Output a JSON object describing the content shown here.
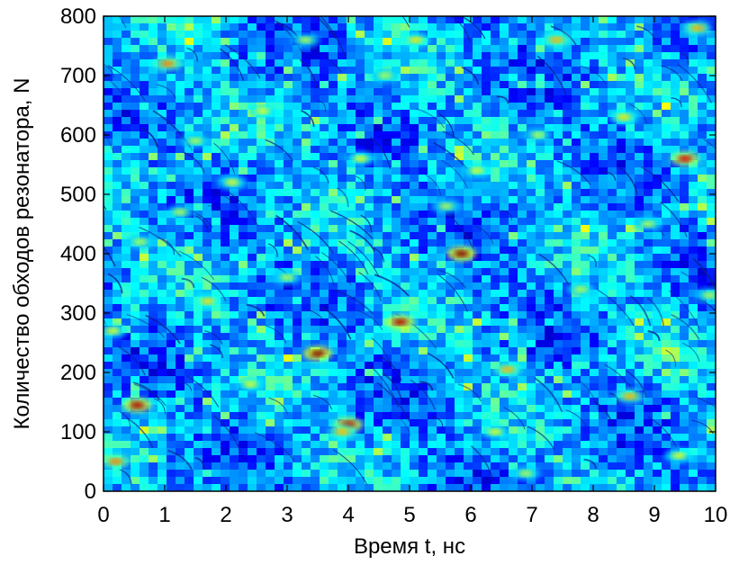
{
  "chart_data": {
    "type": "heatmap",
    "title": "",
    "xlabel": "Время t, нс",
    "ylabel": "Количество обходов резонатора, N",
    "xlim": [
      0,
      10
    ],
    "ylim": [
      0,
      800
    ],
    "xticks": [
      0,
      1,
      2,
      3,
      4,
      5,
      6,
      7,
      8,
      9,
      10
    ],
    "yticks": [
      0,
      100,
      200,
      300,
      400,
      500,
      600,
      700,
      800
    ],
    "xtick_labels": [
      "0",
      "1",
      "2",
      "3",
      "4",
      "5",
      "6",
      "7",
      "8",
      "9",
      "10"
    ],
    "ytick_labels": [
      "0",
      "100",
      "200",
      "300",
      "400",
      "500",
      "600",
      "700",
      "800"
    ],
    "colormap": "jet",
    "background_color": "#1a3fd6",
    "grid": false,
    "legend": "none",
    "hotspots": [
      {
        "x": 0.2,
        "y": 50,
        "level": 0.75
      },
      {
        "x": 0.55,
        "y": 145,
        "level": 0.95
      },
      {
        "x": 0.15,
        "y": 270,
        "level": 0.6
      },
      {
        "x": 1.7,
        "y": 320,
        "level": 0.65
      },
      {
        "x": 1.05,
        "y": 720,
        "level": 0.75
      },
      {
        "x": 1.25,
        "y": 470,
        "level": 0.55
      },
      {
        "x": 2.1,
        "y": 520,
        "level": 0.6
      },
      {
        "x": 3.5,
        "y": 232,
        "level": 1.0
      },
      {
        "x": 4.0,
        "y": 112,
        "level": 0.95
      },
      {
        "x": 3.9,
        "y": 100,
        "level": 0.7
      },
      {
        "x": 4.85,
        "y": 285,
        "level": 0.95
      },
      {
        "x": 5.85,
        "y": 400,
        "level": 1.0
      },
      {
        "x": 3.0,
        "y": 360,
        "level": 0.55
      },
      {
        "x": 2.6,
        "y": 640,
        "level": 0.6
      },
      {
        "x": 4.2,
        "y": 560,
        "level": 0.6
      },
      {
        "x": 5.1,
        "y": 760,
        "level": 0.65
      },
      {
        "x": 6.6,
        "y": 205,
        "level": 0.7
      },
      {
        "x": 6.4,
        "y": 100,
        "level": 0.6
      },
      {
        "x": 7.4,
        "y": 760,
        "level": 0.7
      },
      {
        "x": 7.8,
        "y": 340,
        "level": 0.55
      },
      {
        "x": 8.6,
        "y": 160,
        "level": 0.7
      },
      {
        "x": 8.5,
        "y": 630,
        "level": 0.65
      },
      {
        "x": 9.5,
        "y": 560,
        "level": 0.9
      },
      {
        "x": 9.4,
        "y": 60,
        "level": 0.6
      },
      {
        "x": 9.7,
        "y": 780,
        "level": 0.7
      },
      {
        "x": 6.1,
        "y": 540,
        "level": 0.6
      },
      {
        "x": 5.6,
        "y": 480,
        "level": 0.55
      },
      {
        "x": 7.1,
        "y": 600,
        "level": 0.55
      },
      {
        "x": 1.5,
        "y": 590,
        "level": 0.55
      },
      {
        "x": 0.6,
        "y": 420,
        "level": 0.55
      },
      {
        "x": 2.4,
        "y": 180,
        "level": 0.6
      },
      {
        "x": 4.6,
        "y": 700,
        "level": 0.55
      },
      {
        "x": 8.9,
        "y": 450,
        "level": 0.55
      },
      {
        "x": 3.3,
        "y": 760,
        "level": 0.55
      },
      {
        "x": 6.9,
        "y": 30,
        "level": 0.55
      },
      {
        "x": 9.9,
        "y": 330,
        "level": 0.55
      }
    ]
  }
}
